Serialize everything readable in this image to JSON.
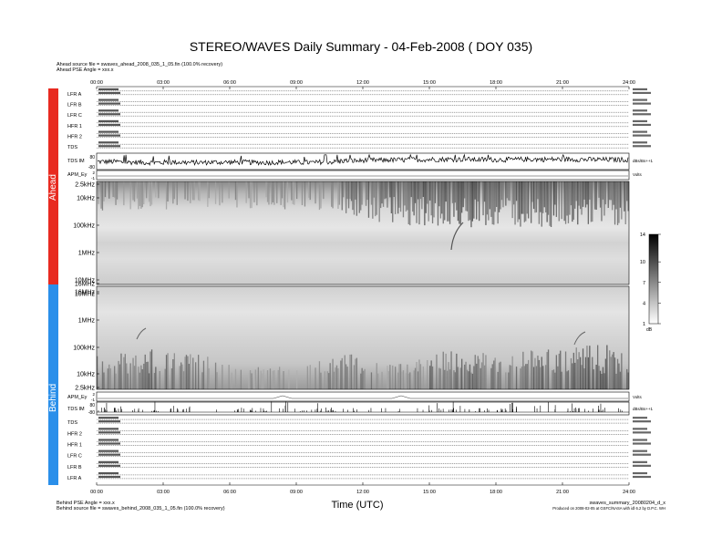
{
  "title": "STEREO/WAVES Daily Summary - 04-Feb-2008 ( DOY 035)",
  "header_lines": [
    "Ahead source file = swaves_ahead_2008_035_1_05.fin (100.0% recovery)",
    "Ahead PSE Angle = xxx.x"
  ],
  "footer_left": [
    "Behind PSE Angle = xxx.x",
    "Behind source file = swaves_behind_2008_035_1_05.fin (100.0% recovery)"
  ],
  "footer_right": [
    "swaves_summary_20080204_d_x",
    "Produced on 2008-02-05 at GSFC/NASA with idl 6.2 by D.P.C. WH"
  ],
  "colors": {
    "ahead_bar": "#e82a20",
    "behind_bar": "#2a8fea"
  },
  "side_labels": {
    "ahead": "Ahead",
    "behind": "Behind"
  },
  "chart_data": {
    "type": "heatmap",
    "xlabel": "Time (UTC)",
    "x_ticks": [
      "00:00",
      "03:00",
      "06:00",
      "09:00",
      "12:00",
      "15:00",
      "18:00",
      "21:00",
      "24:00"
    ],
    "xlim": [
      "00:00",
      "24:00"
    ],
    "ahead_rows": [
      "LFR A",
      "LFR B",
      "LFR C",
      "HFR 1",
      "HFR 2",
      "TDS",
      "TDS IM"
    ],
    "behind_rows": [
      "TDS",
      "HFR 2",
      "HFR 1",
      "LFR C",
      "LFR B",
      "LFR A"
    ],
    "tds_im_label": "TDS IM",
    "tds_im_ticks": [
      "80",
      "-80"
    ],
    "tds_im_unit": "dBs/Bs++1",
    "apm_label": "APM_Ey",
    "apm_ticks": [
      "2",
      "-1"
    ],
    "apm_unit": "Volts",
    "ahead_freq_ticks": [
      "2.5kHz",
      "10kHz",
      "100kHz",
      "1MHz",
      "10MHz",
      "16MHz"
    ],
    "behind_freq_ticks": [
      "16MHz",
      "10MHz",
      "1MHz",
      "100kHz",
      "10kHz",
      "2.5kHz"
    ],
    "colorbar": {
      "ticks": [
        1,
        4,
        7,
        10,
        14
      ],
      "range": [
        1,
        14
      ],
      "unit": "dB"
    },
    "ahead_activity": {
      "hours": [
        0,
        1,
        2,
        3,
        4,
        5,
        6,
        7,
        8,
        9,
        10,
        11,
        12,
        13,
        14,
        15,
        16,
        17,
        18,
        19,
        20,
        21,
        22,
        23
      ],
      "intensity": [
        0.45,
        0.35,
        0.3,
        0.35,
        0.3,
        0.35,
        0.35,
        0.3,
        0.35,
        0.3,
        0.4,
        0.6,
        0.7,
        0.75,
        0.8,
        0.85,
        0.85,
        0.8,
        0.8,
        0.85,
        0.85,
        0.85,
        0.8,
        0.8
      ]
    },
    "behind_activity": {
      "hours": [
        0,
        1,
        2,
        3,
        4,
        5,
        6,
        7,
        8,
        9,
        10,
        11,
        12,
        13,
        14,
        15,
        16,
        17,
        18,
        19,
        20,
        21,
        22,
        23
      ],
      "intensity": [
        0.55,
        0.65,
        0.7,
        0.6,
        0.55,
        0.4,
        0.25,
        0.2,
        0.2,
        0.25,
        0.45,
        0.55,
        0.45,
        0.3,
        0.4,
        0.65,
        0.7,
        0.6,
        0.55,
        0.65,
        0.7,
        0.75,
        0.8,
        0.75
      ]
    }
  }
}
